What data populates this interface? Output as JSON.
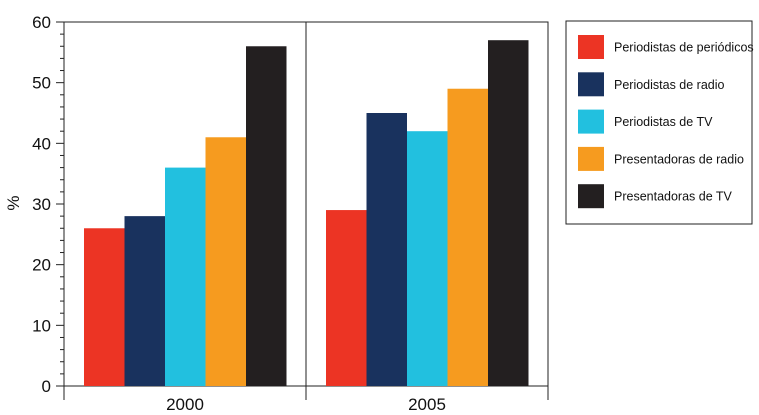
{
  "chart_data": {
    "type": "bar",
    "categories": [
      "2000",
      "2005"
    ],
    "ylabel": "%",
    "ylim": [
      0,
      60
    ],
    "yticks": [
      0,
      10,
      20,
      30,
      40,
      50,
      60
    ],
    "grid": false,
    "legend_position": "right",
    "series": [
      {
        "name": "Periodistas de periódicos",
        "color": "#ec3424",
        "values": [
          26,
          29
        ]
      },
      {
        "name": "Periodistas de radio",
        "color": "#19325e",
        "values": [
          28,
          45
        ]
      },
      {
        "name": "Periodistas de TV",
        "color": "#22c0df",
        "values": [
          36,
          42
        ]
      },
      {
        "name": "Presentadoras de radio",
        "color": "#f69b1f",
        "values": [
          41,
          49
        ]
      },
      {
        "name": "Presentadoras de TV",
        "color": "#231f20",
        "values": [
          56,
          57
        ]
      }
    ]
  }
}
